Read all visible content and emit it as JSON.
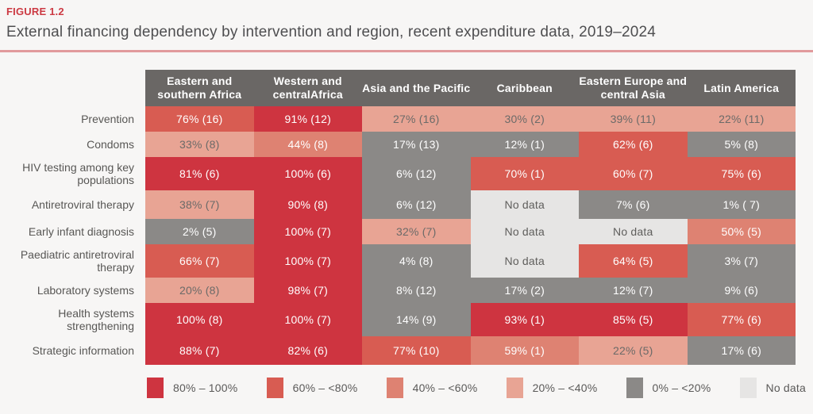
{
  "figure": {
    "label": "FIGURE 1.2",
    "title": "External financing dependency by intervention and region, recent expenditure data, 2019–2024"
  },
  "colors": {
    "page_bg": "#f7f6f5",
    "figure_label": "#cc3a43",
    "title_text": "#4e4e50",
    "title_rule": "#e19a9c",
    "header_bg": "#6a6765",
    "header_text": "#ffffff",
    "row_label_text": "#585755",
    "legend_text": "#5a5958",
    "cell_text_light_bg": "#6b6a68",
    "cell_text_dark_bg": "#ffffff",
    "cell_text_no_data": "#5f5e5c",
    "scale": {
      "80-100": "#ce3440",
      "60-80": "#d85c52",
      "40-60": "#de8272",
      "20-40": "#e8a494",
      "0-20": "#8b8987",
      "no-data": "#e6e5e4"
    }
  },
  "chart_data": {
    "type": "heatmap",
    "title": "External financing dependency by intervention and region, recent expenditure data, 2019–2024",
    "legend_position": "bottom",
    "columns": [
      "Eastern and southern Africa",
      "Western and centralAfrica",
      "Asia and the Pacific",
      "Caribbean",
      "Eastern Europe and central Asia",
      "Latin America"
    ],
    "rows": [
      {
        "label": "Prevention",
        "cells": [
          {
            "text": "76% (16)",
            "category": "60-80"
          },
          {
            "text": "91% (12)",
            "category": "80-100"
          },
          {
            "text": "27% (16)",
            "category": "20-40"
          },
          {
            "text": "30% (2)",
            "category": "20-40"
          },
          {
            "text": "39% (11)",
            "category": "20-40"
          },
          {
            "text": "22% (11)",
            "category": "20-40"
          }
        ]
      },
      {
        "label": "Condoms",
        "cells": [
          {
            "text": "33% (8)",
            "category": "20-40"
          },
          {
            "text": "44% (8)",
            "category": "40-60"
          },
          {
            "text": "17% (13)",
            "category": "0-20"
          },
          {
            "text": "12% (1)",
            "category": "0-20"
          },
          {
            "text": "62% (6)",
            "category": "60-80"
          },
          {
            "text": "5% (8)",
            "category": "0-20"
          }
        ]
      },
      {
        "label": "HIV testing among key populations",
        "cells": [
          {
            "text": "81% (6)",
            "category": "80-100"
          },
          {
            "text": "100% (6)",
            "category": "80-100"
          },
          {
            "text": "6% (12)",
            "category": "0-20"
          },
          {
            "text": "70% (1)",
            "category": "60-80"
          },
          {
            "text": "60% (7)",
            "category": "60-80"
          },
          {
            "text": "75% (6)",
            "category": "60-80"
          }
        ]
      },
      {
        "label": "Antiretroviral therapy",
        "cells": [
          {
            "text": "38% (7)",
            "category": "20-40"
          },
          {
            "text": "90% (8)",
            "category": "80-100"
          },
          {
            "text": "6% (12)",
            "category": "0-20"
          },
          {
            "text": "No data",
            "category": "no-data"
          },
          {
            "text": "7% (6)",
            "category": "0-20"
          },
          {
            "text": "1% ( 7)",
            "category": "0-20"
          }
        ]
      },
      {
        "label": "Early infant diagnosis",
        "cells": [
          {
            "text": "2% (5)",
            "category": "0-20"
          },
          {
            "text": "100% (7)",
            "category": "80-100"
          },
          {
            "text": "32% (7)",
            "category": "20-40"
          },
          {
            "text": "No data",
            "category": "no-data"
          },
          {
            "text": "No data",
            "category": "no-data"
          },
          {
            "text": "50% (5)",
            "category": "40-60"
          }
        ]
      },
      {
        "label": "Paediatric antiretroviral therapy",
        "cells": [
          {
            "text": "66% (7)",
            "category": "60-80"
          },
          {
            "text": "100% (7)",
            "category": "80-100"
          },
          {
            "text": "4% (8)",
            "category": "0-20"
          },
          {
            "text": "No data",
            "category": "no-data"
          },
          {
            "text": "64% (5)",
            "category": "60-80"
          },
          {
            "text": "3% (7)",
            "category": "0-20"
          }
        ]
      },
      {
        "label": "Laboratory systems",
        "cells": [
          {
            "text": "20% (8)",
            "category": "20-40"
          },
          {
            "text": "98% (7)",
            "category": "80-100"
          },
          {
            "text": "8% (12)",
            "category": "0-20"
          },
          {
            "text": "17% (2)",
            "category": "0-20"
          },
          {
            "text": "12% (7)",
            "category": "0-20"
          },
          {
            "text": "9% (6)",
            "category": "0-20"
          }
        ]
      },
      {
        "label": "Health systems strengthening",
        "cells": [
          {
            "text": "100% (8)",
            "category": "80-100"
          },
          {
            "text": "100% (7)",
            "category": "80-100"
          },
          {
            "text": "14% (9)",
            "category": "0-20"
          },
          {
            "text": "93% (1)",
            "category": "80-100"
          },
          {
            "text": "85% (5)",
            "category": "80-100"
          },
          {
            "text": "77% (6)",
            "category": "60-80"
          }
        ]
      },
      {
        "label": "Strategic information",
        "cells": [
          {
            "text": "88% (7)",
            "category": "80-100"
          },
          {
            "text": "82% (6)",
            "category": "80-100"
          },
          {
            "text": "77% (10)",
            "category": "60-80"
          },
          {
            "text": "59% (1)",
            "category": "40-60"
          },
          {
            "text": "22% (5)",
            "category": "20-40"
          },
          {
            "text": "17% (6)",
            "category": "0-20"
          }
        ]
      }
    ],
    "legend": [
      {
        "label": "80% – 100%",
        "category": "80-100"
      },
      {
        "label": "60% – <80%",
        "category": "60-80"
      },
      {
        "label": "40% – <60%",
        "category": "40-60"
      },
      {
        "label": "20% – <40%",
        "category": "20-40"
      },
      {
        "label": "0% – <20%",
        "category": "0-20"
      },
      {
        "label": "No data",
        "category": "no-data"
      }
    ]
  }
}
